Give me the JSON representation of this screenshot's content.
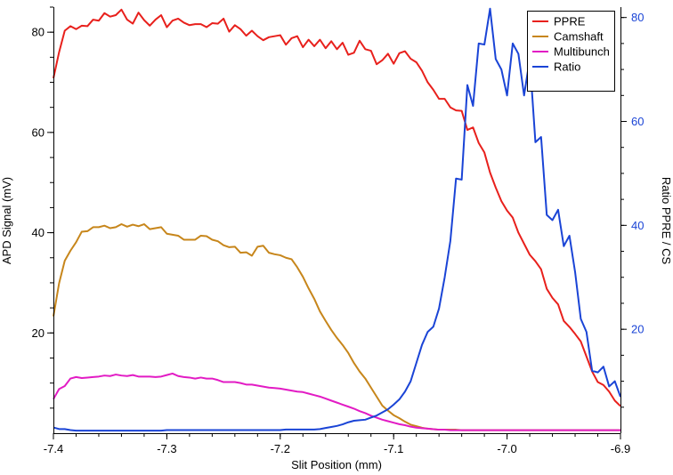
{
  "chart_data": {
    "type": "line",
    "xlabel": "Slit Position (mm)",
    "ylabel": "APD Signal (mV)",
    "y2label": "Ratio PPRE / CS",
    "xlim": [
      -7.4,
      -6.9
    ],
    "ylim": [
      0,
      85
    ],
    "y2lim": [
      0,
      82
    ],
    "x_ticks": [
      -7.4,
      -7.3,
      -7.2,
      -7.1,
      -7.0,
      -6.9
    ],
    "x_tick_labels": [
      "-7.4",
      "-7.3",
      "-7.2",
      "-7.1",
      "-7.0",
      "-6.9"
    ],
    "y_ticks": [
      20,
      40,
      60,
      80
    ],
    "y_tick_labels": [
      "20",
      "40",
      "60",
      "80"
    ],
    "y2_ticks": [
      20,
      40,
      60,
      80
    ],
    "y2_tick_labels": [
      "20",
      "40",
      "60",
      "80"
    ],
    "grid": false,
    "legend_position": "top-right",
    "right_axis_color": "#1a44d6",
    "series": [
      {
        "name": "PPRE",
        "color": "#e8201c",
        "axis": "left",
        "x": [
          -7.4,
          -7.395,
          -7.39,
          -7.385,
          -7.38,
          -7.375,
          -7.37,
          -7.365,
          -7.36,
          -7.355,
          -7.35,
          -7.345,
          -7.34,
          -7.335,
          -7.33,
          -7.325,
          -7.32,
          -7.315,
          -7.31,
          -7.305,
          -7.3,
          -7.295,
          -7.29,
          -7.285,
          -7.28,
          -7.275,
          -7.27,
          -7.265,
          -7.26,
          -7.255,
          -7.25,
          -7.245,
          -7.24,
          -7.235,
          -7.23,
          -7.225,
          -7.22,
          -7.215,
          -7.21,
          -7.205,
          -7.2,
          -7.195,
          -7.19,
          -7.185,
          -7.18,
          -7.175,
          -7.17,
          -7.165,
          -7.16,
          -7.155,
          -7.15,
          -7.145,
          -7.14,
          -7.135,
          -7.13,
          -7.125,
          -7.12,
          -7.115,
          -7.11,
          -7.105,
          -7.1,
          -7.095,
          -7.09,
          -7.085,
          -7.08,
          -7.075,
          -7.07,
          -7.065,
          -7.06,
          -7.055,
          -7.05,
          -7.045,
          -7.04,
          -7.035,
          -7.03,
          -7.025,
          -7.02,
          -7.015,
          -7.01,
          -7.005,
          -7.0,
          -6.995,
          -6.99,
          -6.985,
          -6.98,
          -6.975,
          -6.97,
          -6.965,
          -6.96,
          -6.955,
          -6.95,
          -6.945,
          -6.94,
          -6.935,
          -6.93,
          -6.925,
          -6.92,
          -6.915,
          -6.91,
          -6.905,
          -6.9
        ],
        "values": [
          70.8,
          76.0,
          80.3,
          81.2,
          80.6,
          81.3,
          81.2,
          82.5,
          82.3,
          83.8,
          83.1,
          83.4,
          84.5,
          82.5,
          81.7,
          83.9,
          82.4,
          81.3,
          82.5,
          83.4,
          81.0,
          82.3,
          82.7,
          81.9,
          81.4,
          81.6,
          81.6,
          81.0,
          81.8,
          81.7,
          82.7,
          80.1,
          81.4,
          80.6,
          79.3,
          80.3,
          79.2,
          78.4,
          79.0,
          79.2,
          79.4,
          77.5,
          78.8,
          79.2,
          77.0,
          78.5,
          77.2,
          78.5,
          76.8,
          78.2,
          76.6,
          77.9,
          75.5,
          75.9,
          78.3,
          76.6,
          76.3,
          73.6,
          74.4,
          75.7,
          73.7,
          75.8,
          76.2,
          74.7,
          74.0,
          72.3,
          70.0,
          68.5,
          66.7,
          66.7,
          65.0,
          64.4,
          64.3,
          60.5,
          61.0,
          57.9,
          56.0,
          52.0,
          49.0,
          46.3,
          44.4,
          43.0,
          40.0,
          37.8,
          35.6,
          34.3,
          32.7,
          28.8,
          27.0,
          25.7,
          22.4,
          21.2,
          19.8,
          18.3,
          15.3,
          12.3,
          10.2,
          9.6,
          8.3,
          6.5,
          5.4
        ]
      },
      {
        "name": "Camshaft",
        "color": "#c7861b",
        "axis": "left",
        "x": [
          -7.4,
          -7.395,
          -7.39,
          -7.385,
          -7.38,
          -7.375,
          -7.37,
          -7.365,
          -7.36,
          -7.355,
          -7.35,
          -7.345,
          -7.34,
          -7.335,
          -7.33,
          -7.325,
          -7.32,
          -7.315,
          -7.31,
          -7.305,
          -7.3,
          -7.295,
          -7.29,
          -7.285,
          -7.28,
          -7.275,
          -7.27,
          -7.265,
          -7.26,
          -7.255,
          -7.25,
          -7.245,
          -7.24,
          -7.235,
          -7.23,
          -7.225,
          -7.22,
          -7.215,
          -7.21,
          -7.205,
          -7.2,
          -7.195,
          -7.19,
          -7.185,
          -7.18,
          -7.175,
          -7.17,
          -7.165,
          -7.16,
          -7.155,
          -7.15,
          -7.145,
          -7.14,
          -7.135,
          -7.13,
          -7.125,
          -7.12,
          -7.115,
          -7.11,
          -7.105,
          -7.1,
          -7.095,
          -7.09,
          -7.085,
          -7.08,
          -7.075,
          -7.07,
          -7.065,
          -7.06,
          -7.055,
          -7.05,
          -7.045,
          -7.04,
          -7.035,
          -7.03,
          -7.025,
          -7.02,
          -7.015,
          -7.01,
          -7.005,
          -7.0,
          -6.995,
          -6.99,
          -6.985,
          -6.98,
          -6.975,
          -6.97,
          -6.965,
          -6.96,
          -6.955,
          -6.95,
          -6.945,
          -6.94,
          -6.935,
          -6.93,
          -6.925,
          -6.92,
          -6.915,
          -6.91,
          -6.905,
          -6.9
        ],
        "values": [
          23.3,
          29.9,
          34.4,
          36.4,
          38.1,
          40.2,
          40.3,
          41.1,
          41.1,
          41.4,
          40.9,
          41.1,
          41.7,
          41.2,
          41.6,
          41.3,
          41.7,
          40.7,
          40.9,
          41.1,
          39.8,
          39.6,
          39.4,
          38.6,
          38.6,
          38.6,
          39.4,
          39.3,
          38.6,
          38.3,
          37.5,
          37.1,
          37.2,
          36.0,
          36.1,
          35.4,
          37.2,
          37.4,
          36.0,
          35.7,
          35.5,
          35.0,
          34.7,
          33.1,
          31.2,
          28.9,
          26.8,
          24.3,
          22.4,
          20.6,
          19.0,
          17.6,
          16.0,
          14.0,
          12.3,
          10.9,
          9.1,
          7.3,
          5.5,
          4.5,
          3.6,
          3.0,
          2.3,
          1.7,
          1.4,
          1.1,
          0.9,
          0.8,
          0.7,
          0.7,
          0.7,
          0.7,
          0.6,
          0.6,
          0.6,
          0.6,
          0.6,
          0.6,
          0.6,
          0.6,
          0.6,
          0.6,
          0.6,
          0.6,
          0.6,
          0.6,
          0.6,
          0.6,
          0.6,
          0.6,
          0.6,
          0.6,
          0.6,
          0.6,
          0.6,
          0.6,
          0.6,
          0.6,
          0.6,
          0.6,
          0.6
        ]
      },
      {
        "name": "Multibunch",
        "color": "#e21bc4",
        "axis": "left",
        "x": [
          -7.4,
          -7.395,
          -7.39,
          -7.385,
          -7.38,
          -7.375,
          -7.37,
          -7.365,
          -7.36,
          -7.355,
          -7.35,
          -7.345,
          -7.34,
          -7.335,
          -7.33,
          -7.325,
          -7.32,
          -7.315,
          -7.31,
          -7.305,
          -7.3,
          -7.295,
          -7.29,
          -7.285,
          -7.28,
          -7.275,
          -7.27,
          -7.265,
          -7.26,
          -7.255,
          -7.25,
          -7.245,
          -7.24,
          -7.235,
          -7.23,
          -7.225,
          -7.22,
          -7.215,
          -7.21,
          -7.205,
          -7.2,
          -7.195,
          -7.19,
          -7.185,
          -7.18,
          -7.175,
          -7.17,
          -7.165,
          -7.16,
          -7.155,
          -7.15,
          -7.145,
          -7.14,
          -7.135,
          -7.13,
          -7.125,
          -7.12,
          -7.115,
          -7.11,
          -7.105,
          -7.1,
          -7.095,
          -7.09,
          -7.085,
          -7.08,
          -7.075,
          -7.07,
          -7.065,
          -7.06,
          -7.055,
          -7.05,
          -7.045,
          -7.04,
          -7.035,
          -7.03,
          -7.025,
          -7.02,
          -7.015,
          -7.01,
          -7.005,
          -7.0,
          -6.995,
          -6.99,
          -6.985,
          -6.98,
          -6.975,
          -6.97,
          -6.965,
          -6.96,
          -6.955,
          -6.95,
          -6.945,
          -6.94,
          -6.935,
          -6.93,
          -6.925,
          -6.92,
          -6.915,
          -6.91,
          -6.905,
          -6.9
        ],
        "values": [
          6.8,
          8.8,
          9.4,
          10.9,
          11.2,
          11.0,
          11.1,
          11.2,
          11.3,
          11.5,
          11.4,
          11.7,
          11.5,
          11.4,
          11.6,
          11.3,
          11.3,
          11.3,
          11.2,
          11.3,
          11.6,
          11.9,
          11.4,
          11.2,
          11.1,
          10.9,
          11.1,
          10.9,
          10.9,
          10.6,
          10.2,
          10.2,
          10.2,
          10.0,
          9.7,
          9.7,
          9.5,
          9.3,
          9.1,
          9.0,
          8.9,
          8.7,
          8.5,
          8.3,
          8.2,
          7.9,
          7.6,
          7.3,
          6.9,
          6.5,
          6.1,
          5.7,
          5.3,
          4.9,
          4.4,
          4.0,
          3.5,
          3.1,
          2.7,
          2.4,
          2.1,
          1.8,
          1.6,
          1.3,
          1.1,
          1.0,
          0.9,
          0.8,
          0.7,
          0.7,
          0.6,
          0.6,
          0.6,
          0.6,
          0.6,
          0.6,
          0.6,
          0.6,
          0.6,
          0.6,
          0.6,
          0.6,
          0.6,
          0.6,
          0.6,
          0.6,
          0.6,
          0.6,
          0.6,
          0.6,
          0.6,
          0.6,
          0.6,
          0.6,
          0.6,
          0.6,
          0.6,
          0.6,
          0.6,
          0.6,
          0.6
        ]
      },
      {
        "name": "Ratio",
        "color": "#1a44d6",
        "axis": "right",
        "x": [
          -7.4,
          -7.395,
          -7.39,
          -7.385,
          -7.38,
          -7.375,
          -7.37,
          -7.365,
          -7.36,
          -7.355,
          -7.35,
          -7.345,
          -7.34,
          -7.335,
          -7.33,
          -7.325,
          -7.32,
          -7.315,
          -7.31,
          -7.305,
          -7.3,
          -7.295,
          -7.29,
          -7.285,
          -7.28,
          -7.275,
          -7.27,
          -7.265,
          -7.26,
          -7.255,
          -7.25,
          -7.245,
          -7.24,
          -7.235,
          -7.23,
          -7.225,
          -7.22,
          -7.215,
          -7.21,
          -7.205,
          -7.2,
          -7.195,
          -7.19,
          -7.185,
          -7.18,
          -7.175,
          -7.17,
          -7.165,
          -7.16,
          -7.155,
          -7.15,
          -7.145,
          -7.14,
          -7.135,
          -7.13,
          -7.125,
          -7.12,
          -7.115,
          -7.11,
          -7.105,
          -7.1,
          -7.095,
          -7.09,
          -7.085,
          -7.08,
          -7.075,
          -7.07,
          -7.065,
          -7.06,
          -7.055,
          -7.05,
          -7.045,
          -7.04,
          -7.035,
          -7.03,
          -7.025,
          -7.02,
          -7.015,
          -7.01,
          -7.005,
          -7.0,
          -6.995,
          -6.99,
          -6.985,
          -6.98,
          -6.975,
          -6.97,
          -6.965,
          -6.96,
          -6.955,
          -6.95,
          -6.945,
          -6.94,
          -6.935,
          -6.93,
          -6.925,
          -6.92,
          -6.915,
          -6.91,
          -6.905,
          -6.9
        ],
        "values": [
          1.1,
          0.8,
          0.8,
          0.6,
          0.5,
          0.5,
          0.5,
          0.5,
          0.5,
          0.5,
          0.5,
          0.5,
          0.5,
          0.5,
          0.5,
          0.5,
          0.5,
          0.5,
          0.5,
          0.5,
          0.6,
          0.6,
          0.6,
          0.6,
          0.6,
          0.6,
          0.6,
          0.6,
          0.6,
          0.6,
          0.6,
          0.6,
          0.6,
          0.6,
          0.6,
          0.6,
          0.6,
          0.6,
          0.6,
          0.6,
          0.6,
          0.7,
          0.7,
          0.7,
          0.7,
          0.7,
          0.7,
          0.8,
          1.0,
          1.2,
          1.4,
          1.7,
          2.1,
          2.4,
          2.5,
          2.6,
          3.0,
          3.4,
          4.0,
          4.6,
          5.5,
          6.5,
          8.0,
          10.0,
          13.5,
          17.0,
          19.5,
          20.5,
          24.0,
          30.0,
          37.0,
          49.0,
          48.8,
          67.0,
          63.0,
          75.0,
          74.8,
          81.7,
          72.0,
          70.0,
          65.0,
          75.0,
          73.0,
          65.0,
          72.0,
          56.0,
          57.0,
          42.0,
          41.0,
          43.0,
          36.0,
          38.0,
          31.0,
          22.0,
          19.5,
          12.0,
          11.7,
          12.8,
          9.0,
          10.0,
          7.0
        ]
      }
    ]
  }
}
